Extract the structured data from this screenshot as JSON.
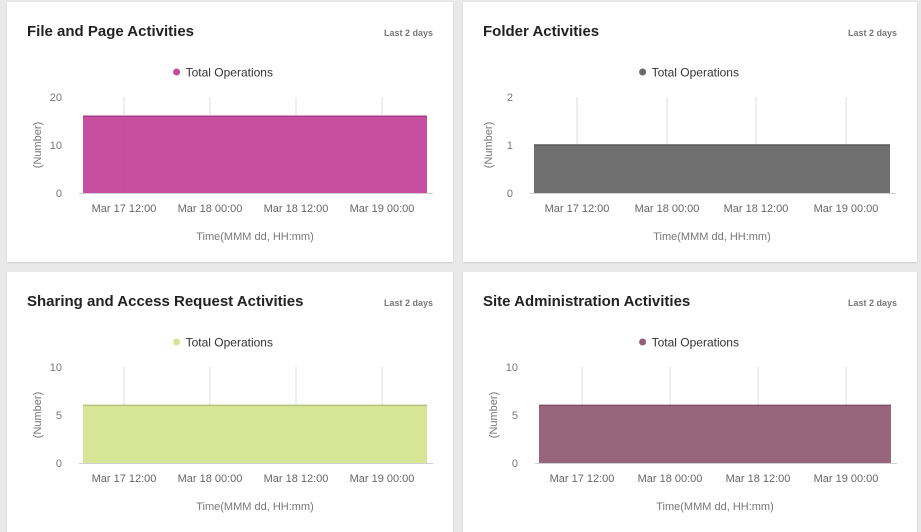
{
  "cards": [
    {
      "title": "File and Page Activities",
      "range_label": "Last 2 days",
      "color": "#c4489c",
      "chart_data": {
        "type": "area",
        "series": [
          {
            "name": "Total Operations",
            "values": [
              16,
              16,
              16,
              16
            ]
          }
        ],
        "x": [
          "Mar 17 12:00",
          "Mar 18 00:00",
          "Mar 18 12:00",
          "Mar 19 00:00"
        ],
        "xlabel": "Time(MMM dd, HH:mm)",
        "ylabel": "(Number)",
        "yticks": [
          "20",
          "10",
          "0"
        ],
        "ylim": [
          0,
          20
        ],
        "legend": "top-center",
        "grid": "vertical"
      }
    },
    {
      "title": "Folder Activities",
      "range_label": "Last 2 days",
      "color": "#6a6a6a",
      "chart_data": {
        "type": "area",
        "series": [
          {
            "name": "Total Operations",
            "values": [
              1,
              1,
              1,
              1
            ]
          }
        ],
        "x": [
          "Mar 17 12:00",
          "Mar 18 00:00",
          "Mar 18 12:00",
          "Mar 19 00:00"
        ],
        "xlabel": "Time(MMM dd, HH:mm)",
        "ylabel": "(Number)",
        "yticks": [
          "2",
          "1",
          "0"
        ],
        "ylim": [
          0,
          2
        ],
        "legend": "top-center",
        "grid": "vertical"
      }
    },
    {
      "title": "Sharing and Access Request Activities",
      "range_label": "Last 2 days",
      "color": "#d4e592",
      "chart_data": {
        "type": "area",
        "series": [
          {
            "name": "Total Operations",
            "values": [
              6,
              6,
              6,
              6
            ]
          }
        ],
        "x": [
          "Mar 17 12:00",
          "Mar 18 00:00",
          "Mar 18 12:00",
          "Mar 19 00:00"
        ],
        "xlabel": "Time(MMM dd, HH:mm)",
        "ylabel": "(Number)",
        "yticks": [
          "10",
          "5",
          "0"
        ],
        "ylim": [
          0,
          10
        ],
        "legend": "top-center",
        "grid": "vertical"
      }
    },
    {
      "title": "Site Administration Activities",
      "range_label": "Last 2 days",
      "color": "#935f77",
      "chart_data": {
        "type": "area",
        "series": [
          {
            "name": "Total Operations",
            "values": [
              6,
              6,
              6,
              6
            ]
          }
        ],
        "x": [
          "Mar 17 12:00",
          "Mar 18 00:00",
          "Mar 18 12:00",
          "Mar 19 00:00"
        ],
        "xlabel": "Time(MMM dd, HH:mm)",
        "ylabel": "(Number)",
        "yticks": [
          "10",
          "5",
          "0"
        ],
        "ylim": [
          0,
          10
        ],
        "legend": "top-center",
        "grid": "vertical"
      }
    }
  ]
}
